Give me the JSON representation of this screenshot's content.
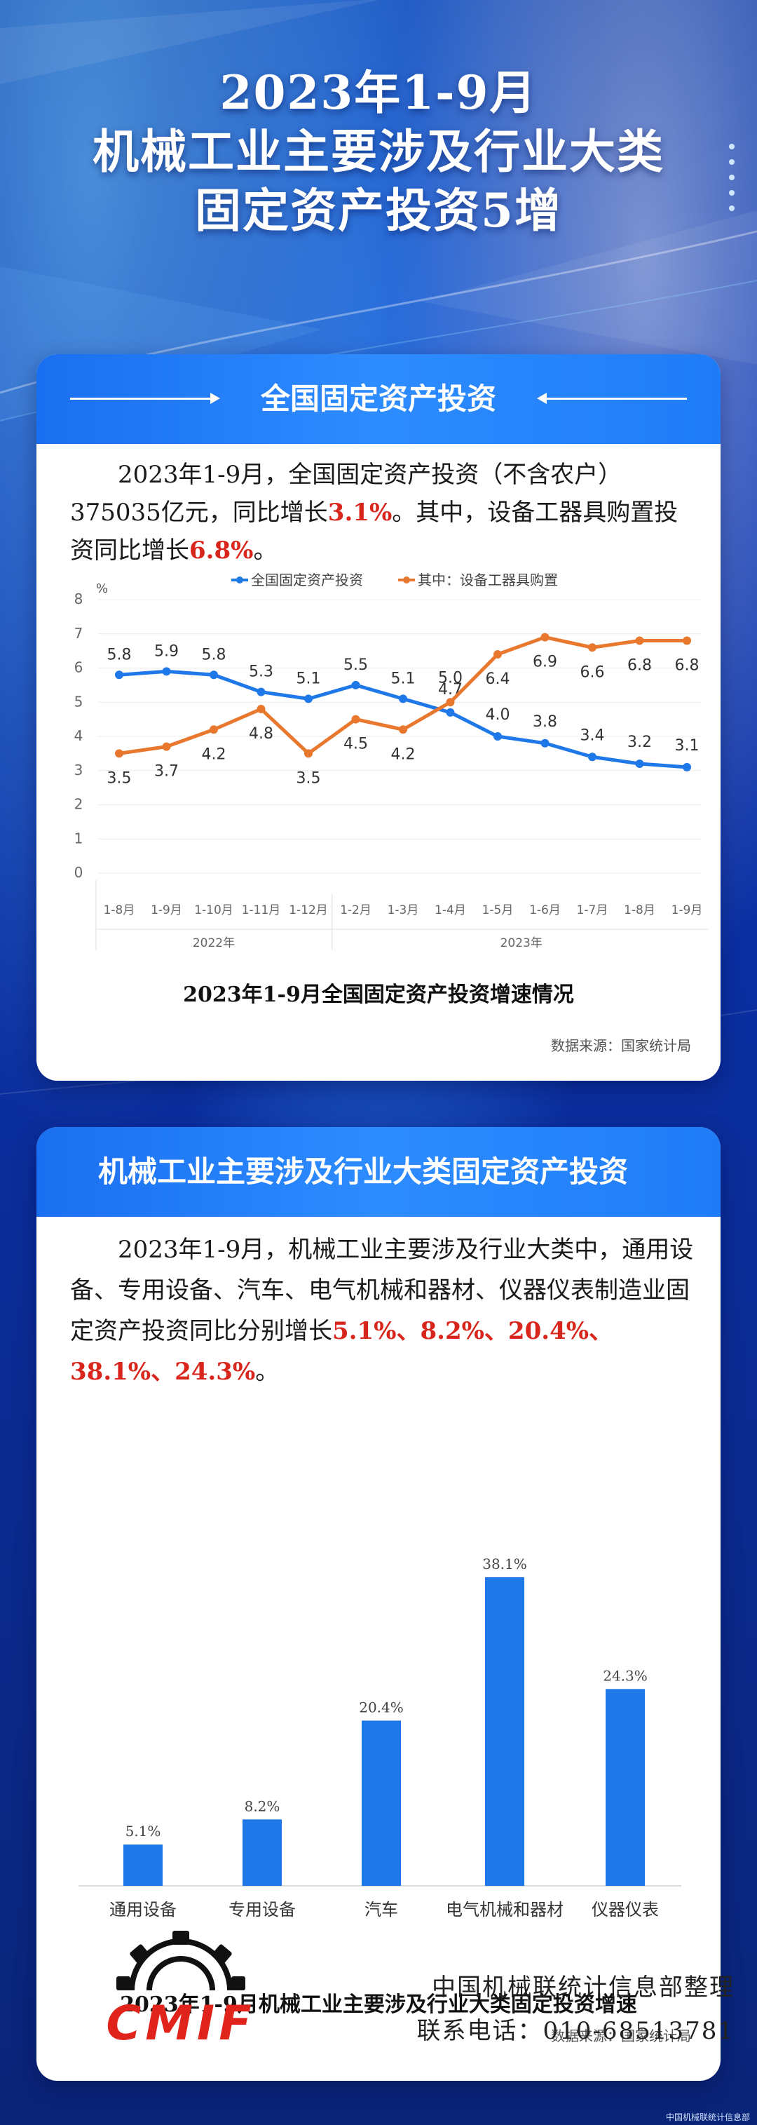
{
  "header": {
    "line1": "2023年1-9月",
    "line2": "机械工业主要涉及行业大类",
    "line3": "固定资产投资5增"
  },
  "section1": {
    "title": "全国固定资产投资",
    "para_parts": [
      "2023年1-9月，全国固定资产投资（不含农户）375035亿元，同比增长",
      "3.1%",
      "。其中，设备工器具购置投资同比增长",
      "6.8%",
      "。"
    ],
    "caption": "2023年1-9月全国固定资产投资增速情况",
    "source": "数据来源：国家统计局"
  },
  "section2": {
    "title": "机械工业主要涉及行业大类固定资产投资",
    "para_parts": [
      "2023年1-9月，机械工业主要涉及行业大类中，通用设备、专用设备、汽车、电气机械和器材、仪器仪表制造业固定资产投资同比分别增长",
      "5.1%、8.2%、20.4%、38.1%、24.3%",
      "。"
    ],
    "caption": "2023年1-9月机械工业主要涉及行业大类固定投资增速",
    "source": "数据来源：国家统计局"
  },
  "footer": {
    "org": "中国机械联统计信息部整理",
    "phone": "联系电话：010-68513781",
    "logo_text": "CMIF",
    "tiny": "中国机械联统计信息部"
  },
  "colors": {
    "blue": "#1f78e8",
    "orange": "#e9782f",
    "highlight": "#d9261c"
  },
  "chart_data": [
    {
      "type": "line",
      "ylabel": "%",
      "ylim": [
        0,
        8
      ],
      "yticks": [
        "0",
        "1",
        "2",
        "3",
        "4",
        "5",
        "6",
        "7",
        "8"
      ],
      "categories": [
        "1-8月",
        "1-9月",
        "1-10月",
        "1-11月",
        "1-12月",
        "1-2月",
        "1-3月",
        "1-4月",
        "1-5月",
        "1-6月",
        "1-7月",
        "1-8月",
        "1-9月"
      ],
      "groups": [
        {
          "label": "2022年",
          "count": 5
        },
        {
          "label": "2023年",
          "count": 8
        }
      ],
      "legend_position": "top",
      "series": [
        {
          "name": "全国固定资产投资",
          "color": "#1f78e8",
          "values": [
            5.8,
            5.9,
            5.8,
            5.3,
            5.1,
            5.5,
            5.1,
            4.7,
            4.0,
            3.8,
            3.4,
            3.2,
            3.1
          ]
        },
        {
          "name": "其中：设备工器具购置",
          "color": "#e9782f",
          "values": [
            3.5,
            3.7,
            4.2,
            4.8,
            3.5,
            4.5,
            4.2,
            5.0,
            6.4,
            6.9,
            6.6,
            6.8,
            6.8
          ]
        }
      ]
    },
    {
      "type": "bar",
      "categories": [
        "通用设备",
        "专用设备",
        "汽车",
        "电气机械和器材",
        "仪器仪表"
      ],
      "values": [
        5.1,
        8.2,
        20.4,
        38.1,
        24.3
      ],
      "labels": [
        "5.1%",
        "8.2%",
        "20.4%",
        "38.1%",
        "24.3%"
      ],
      "color": "#1f78e8",
      "ylim": [
        0,
        40
      ]
    }
  ]
}
